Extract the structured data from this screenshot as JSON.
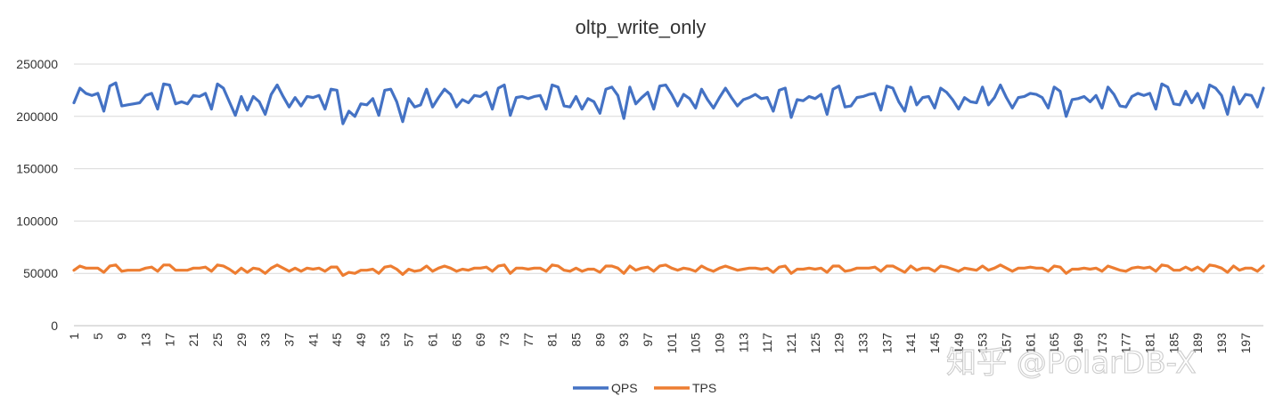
{
  "watermark": "知乎 @PolarDB-X",
  "chart_data": {
    "type": "line",
    "title": "oltp_write_only",
    "xlabel": "",
    "ylabel": "",
    "ylim": [
      0,
      250000
    ],
    "yticks": [
      0,
      50000,
      100000,
      150000,
      200000,
      250000
    ],
    "xlim": [
      1,
      200
    ],
    "xtick_step": 4,
    "grid": true,
    "legend": "bottom-center",
    "colors": {
      "QPS": "#4472c4",
      "TPS": "#ed7d31",
      "grid": "#d9d9d9",
      "axis": "#bfbfbf"
    },
    "series": [
      {
        "name": "QPS",
        "values": [
          213000,
          227000,
          222000,
          220000,
          222000,
          205000,
          229000,
          232000,
          210000,
          211000,
          212000,
          213000,
          220000,
          222000,
          207000,
          231000,
          230000,
          212000,
          214000,
          212000,
          220000,
          219000,
          222000,
          207000,
          231000,
          227000,
          214000,
          201000,
          219000,
          206000,
          219000,
          214000,
          202000,
          221000,
          230000,
          219000,
          209000,
          218000,
          210000,
          219000,
          218000,
          220000,
          207000,
          226000,
          225000,
          193000,
          205000,
          200000,
          212000,
          211000,
          217000,
          201000,
          225000,
          226000,
          214000,
          195000,
          217000,
          209000,
          211000,
          226000,
          209000,
          218000,
          226000,
          221000,
          209000,
          216000,
          213000,
          220000,
          219000,
          223000,
          207000,
          227000,
          230000,
          201000,
          218000,
          219000,
          217000,
          219000,
          220000,
          207000,
          230000,
          228000,
          210000,
          209000,
          219000,
          207000,
          217000,
          214000,
          203000,
          226000,
          228000,
          220000,
          198000,
          228000,
          212000,
          218000,
          223000,
          207000,
          229000,
          230000,
          221000,
          210000,
          221000,
          217000,
          208000,
          226000,
          216000,
          208000,
          218000,
          227000,
          218000,
          210000,
          216000,
          218000,
          221000,
          217000,
          218000,
          205000,
          225000,
          227000,
          199000,
          216000,
          215000,
          219000,
          217000,
          221000,
          202000,
          226000,
          229000,
          209000,
          210000,
          218000,
          219000,
          221000,
          222000,
          206000,
          229000,
          227000,
          214000,
          205000,
          228000,
          211000,
          218000,
          219000,
          208000,
          227000,
          223000,
          216000,
          207000,
          218000,
          214000,
          213000,
          228000,
          211000,
          218000,
          230000,
          218000,
          208000,
          218000,
          219000,
          222000,
          221000,
          218000,
          208000,
          228000,
          224000,
          200000,
          216000,
          217000,
          219000,
          214000,
          220000,
          208000,
          228000,
          221000,
          210000,
          209000,
          219000,
          222000,
          220000,
          222000,
          207000,
          231000,
          228000,
          212000,
          211000,
          224000,
          213000,
          222000,
          208000,
          230000,
          227000,
          220000,
          202000,
          228000,
          212000,
          221000,
          220000,
          209000,
          227000
        ]
      },
      {
        "name": "TPS",
        "values": [
          53000,
          57000,
          55000,
          55000,
          55000,
          51000,
          57000,
          58000,
          52000,
          53000,
          53000,
          53000,
          55000,
          56000,
          52000,
          58000,
          58000,
          53000,
          53000,
          53000,
          55000,
          55000,
          56000,
          52000,
          58000,
          57000,
          54000,
          50000,
          55000,
          51000,
          55000,
          54000,
          50000,
          55000,
          58000,
          55000,
          52000,
          55000,
          52000,
          55000,
          54000,
          55000,
          52000,
          56000,
          56000,
          48000,
          51000,
          50000,
          53000,
          53000,
          54000,
          50000,
          56000,
          57000,
          54000,
          49000,
          54000,
          52000,
          53000,
          57000,
          52000,
          55000,
          57000,
          55000,
          52000,
          54000,
          53000,
          55000,
          55000,
          56000,
          52000,
          57000,
          58000,
          50000,
          55000,
          55000,
          54000,
          55000,
          55000,
          52000,
          58000,
          57000,
          53000,
          52000,
          55000,
          52000,
          54000,
          54000,
          51000,
          57000,
          57000,
          55000,
          50000,
          57000,
          53000,
          55000,
          56000,
          52000,
          57000,
          58000,
          55000,
          53000,
          55000,
          54000,
          52000,
          57000,
          54000,
          52000,
          55000,
          57000,
          55000,
          53000,
          54000,
          55000,
          55000,
          54000,
          55000,
          51000,
          56000,
          57000,
          50000,
          54000,
          54000,
          55000,
          54000,
          55000,
          51000,
          57000,
          57000,
          52000,
          53000,
          55000,
          55000,
          55000,
          56000,
          52000,
          57000,
          57000,
          54000,
          51000,
          57000,
          53000,
          55000,
          55000,
          52000,
          57000,
          56000,
          54000,
          52000,
          55000,
          54000,
          53000,
          57000,
          53000,
          55000,
          58000,
          55000,
          52000,
          55000,
          55000,
          56000,
          55000,
          55000,
          52000,
          57000,
          56000,
          50000,
          54000,
          54000,
          55000,
          54000,
          55000,
          52000,
          57000,
          55000,
          53000,
          52000,
          55000,
          56000,
          55000,
          56000,
          52000,
          58000,
          57000,
          53000,
          53000,
          56000,
          53000,
          56000,
          52000,
          58000,
          57000,
          55000,
          51000,
          57000,
          53000,
          55000,
          55000,
          52000,
          57000
        ]
      }
    ]
  }
}
